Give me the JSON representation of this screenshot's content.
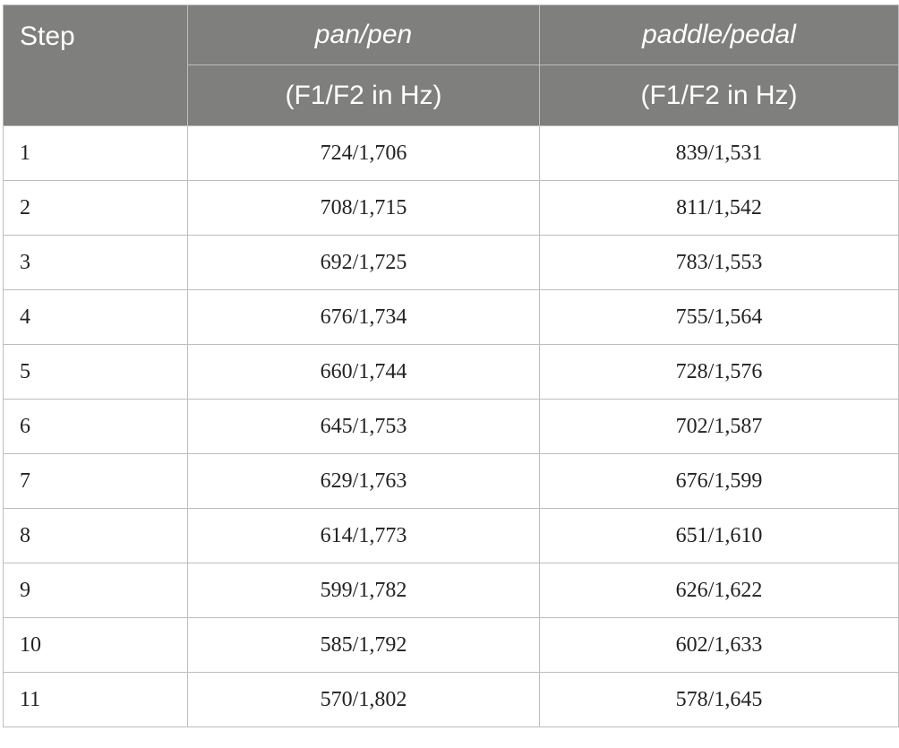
{
  "table": {
    "headers": {
      "step": "Step",
      "col1_name": "pan/pen",
      "col2_name": "paddle/pedal",
      "col1_unit": "(F1/F2 in Hz)",
      "col2_unit": "(F1/F2 in Hz)"
    },
    "rows": [
      {
        "step": "1",
        "pan_pen": "724/1,706",
        "paddle_pedal": "839/1,531"
      },
      {
        "step": "2",
        "pan_pen": "708/1,715",
        "paddle_pedal": "811/1,542"
      },
      {
        "step": "3",
        "pan_pen": "692/1,725",
        "paddle_pedal": "783/1,553"
      },
      {
        "step": "4",
        "pan_pen": "676/1,734",
        "paddle_pedal": "755/1,564"
      },
      {
        "step": "5",
        "pan_pen": "660/1,744",
        "paddle_pedal": "728/1,576"
      },
      {
        "step": "6",
        "pan_pen": "645/1,753",
        "paddle_pedal": "702/1,587"
      },
      {
        "step": "7",
        "pan_pen": "629/1,763",
        "paddle_pedal": "676/1,599"
      },
      {
        "step": "8",
        "pan_pen": "614/1,773",
        "paddle_pedal": "651/1,610"
      },
      {
        "step": "9",
        "pan_pen": "599/1,782",
        "paddle_pedal": "626/1,622"
      },
      {
        "step": "10",
        "pan_pen": "585/1,792",
        "paddle_pedal": "602/1,633"
      },
      {
        "step": "11",
        "pan_pen": "570/1,802",
        "paddle_pedal": "578/1,645"
      }
    ]
  },
  "colors": {
    "header_bg": "#7f7f7e",
    "header_text": "#ffffff",
    "border": "#bdbdbd"
  }
}
